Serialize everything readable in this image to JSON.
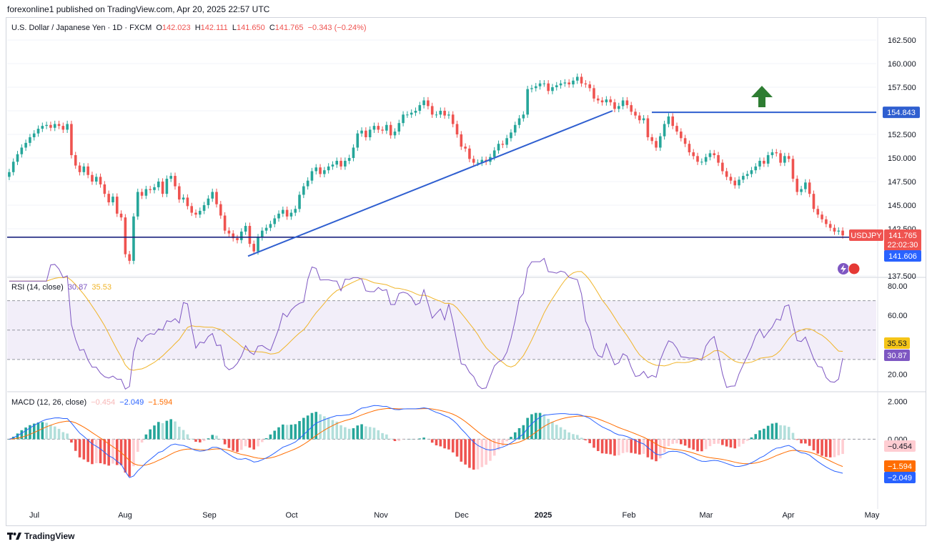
{
  "publisher": "forexonline1 published on TradingView.com, Apr 20, 2025 22:57 UTC",
  "header": {
    "symbol": "U.S. Dollar / Japanese Yen · 1D · FXCM",
    "o_label": "O",
    "o": "142.023",
    "h_label": "H",
    "h": "142.111",
    "l_label": "L",
    "l": "141.650",
    "c_label": "C",
    "c": "141.765",
    "change": "−0.343 (−0.24%)"
  },
  "rsi_legend": {
    "name": "RSI (14, close)",
    "v1": "30.87",
    "v2": "35.53"
  },
  "macd_legend": {
    "name": "MACD (12, 26, close)",
    "v1": "−0.454",
    "v2": "−2.049",
    "v3": "−1.594"
  },
  "price_axis": [
    "162.500",
    "160.000",
    "157.500",
    "155.000",
    "152.500",
    "150.000",
    "147.500",
    "145.000",
    "142.500",
    "137.500"
  ],
  "rsi_axis": [
    "80.00",
    "60.00",
    "20.00"
  ],
  "macd_axis": [
    "2.000",
    "0.000"
  ],
  "time_axis": [
    "Jul",
    "Aug",
    "Sep",
    "Oct",
    "Nov",
    "Dec",
    "2025",
    "Feb",
    "Mar",
    "Apr",
    "May"
  ],
  "badges": {
    "resistance": "154.843",
    "symbol": "USDJPY",
    "last": "141.765",
    "countdown": "22:02:30",
    "support": "141.606",
    "rsi_a": "35.53",
    "rsi_b": "30.87",
    "macd_hist": "−0.454",
    "macd_signal": "−1.594",
    "macd_line": "−2.049"
  },
  "footer": {
    "brand": "TradingView",
    "logo": "tradingview-logo"
  },
  "colors": {
    "up": "#26a69a",
    "down": "#ef5350",
    "trend": "#2f5fd0",
    "arrow": "#2e7d32",
    "rsi": "#7e57c2",
    "rsi_ma": "#f0b429",
    "macd": "#2962ff",
    "signal": "#ff6d00"
  },
  "chart_data": {
    "type": "candlestick",
    "title": "U.S. Dollar / Japanese Yen · 1D · FXCM",
    "ylim": [
      137.5,
      163.0
    ],
    "close": [
      148.5,
      149.6,
      150.4,
      151.1,
      151.6,
      152.2,
      152.6,
      153.1,
      153.4,
      153.5,
      153.2,
      153.6,
      153.4,
      153.0,
      153.6,
      150.3,
      149.2,
      148.5,
      149.1,
      148.2,
      147.5,
      148.0,
      147.2,
      146.2,
      145.3,
      145.9,
      144.1,
      143.7,
      139.8,
      139.1,
      143.8,
      146.4,
      146.0,
      146.7,
      146.6,
      146.9,
      147.5,
      146.2,
      147.8,
      148.1,
      147.0,
      145.6,
      145.8,
      144.9,
      144.2,
      144.0,
      144.4,
      145.0,
      145.7,
      146.4,
      145.1,
      143.9,
      142.3,
      142.0,
      141.5,
      141.3,
      142.2,
      142.8,
      140.9,
      140.1,
      141.6,
      142.3,
      142.6,
      143.0,
      143.6,
      144.1,
      144.5,
      143.8,
      144.2,
      144.6,
      146.1,
      147.0,
      147.6,
      148.6,
      149.0,
      148.3,
      148.7,
      149.1,
      149.3,
      149.7,
      149.1,
      149.7,
      150.0,
      151.1,
      152.6,
      152.9,
      152.2,
      153.0,
      153.4,
      153.0,
      152.9,
      153.5,
      152.4,
      152.8,
      153.7,
      154.6,
      154.6,
      154.8,
      155.0,
      155.6,
      156.1,
      155.5,
      154.6,
      154.6,
      155.0,
      154.5,
      154.6,
      153.6,
      152.5,
      151.2,
      151.0,
      149.9,
      149.5,
      149.5,
      149.8,
      149.6,
      150.1,
      150.8,
      151.5,
      151.4,
      152.1,
      152.7,
      153.5,
      154.2,
      154.6,
      157.3,
      157.4,
      157.6,
      157.9,
      157.9,
      157.1,
      157.5,
      157.7,
      157.9,
      158.0,
      157.8,
      158.2,
      158.6,
      157.9,
      157.8,
      157.4,
      156.3,
      156.1,
      155.9,
      156.2,
      155.9,
      155.2,
      155.5,
      156.1,
      155.6,
      154.9,
      154.5,
      154.0,
      154.2,
      152.2,
      151.8,
      151.1,
      152.3,
      153.6,
      154.4,
      153.4,
      152.8,
      152.1,
      151.5,
      150.6,
      150.2,
      149.6,
      149.6,
      150.1,
      150.5,
      150.3,
      149.5,
      148.6,
      148.0,
      147.6,
      147.1,
      147.7,
      148.1,
      148.3,
      148.7,
      149.1,
      149.7,
      149.4,
      150.3,
      150.6,
      150.5,
      149.5,
      150.2,
      149.9,
      147.8,
      146.4,
      146.7,
      147.4,
      146.2,
      144.6,
      144.0,
      143.5,
      143.0,
      142.6,
      142.2,
      142.3,
      141.8
    ],
    "levels": {
      "resistance": 154.843,
      "support": 141.606
    },
    "trendline": {
      "from": {
        "x": "Sep 16",
        "y": 139.6
      },
      "to": {
        "x": "Jan 27",
        "y": 155.0
      }
    },
    "rsi": {
      "name": "RSI (14, close)",
      "value": 30.87,
      "ma": 35.53,
      "ylim": [
        10,
        82
      ],
      "bands": [
        70,
        50,
        30
      ]
    },
    "macd": {
      "name": "MACD (12, 26, close)",
      "histogram": -0.454,
      "macd": -2.049,
      "signal": -1.594,
      "ylim": [
        -3.6,
        2.2
      ]
    }
  }
}
